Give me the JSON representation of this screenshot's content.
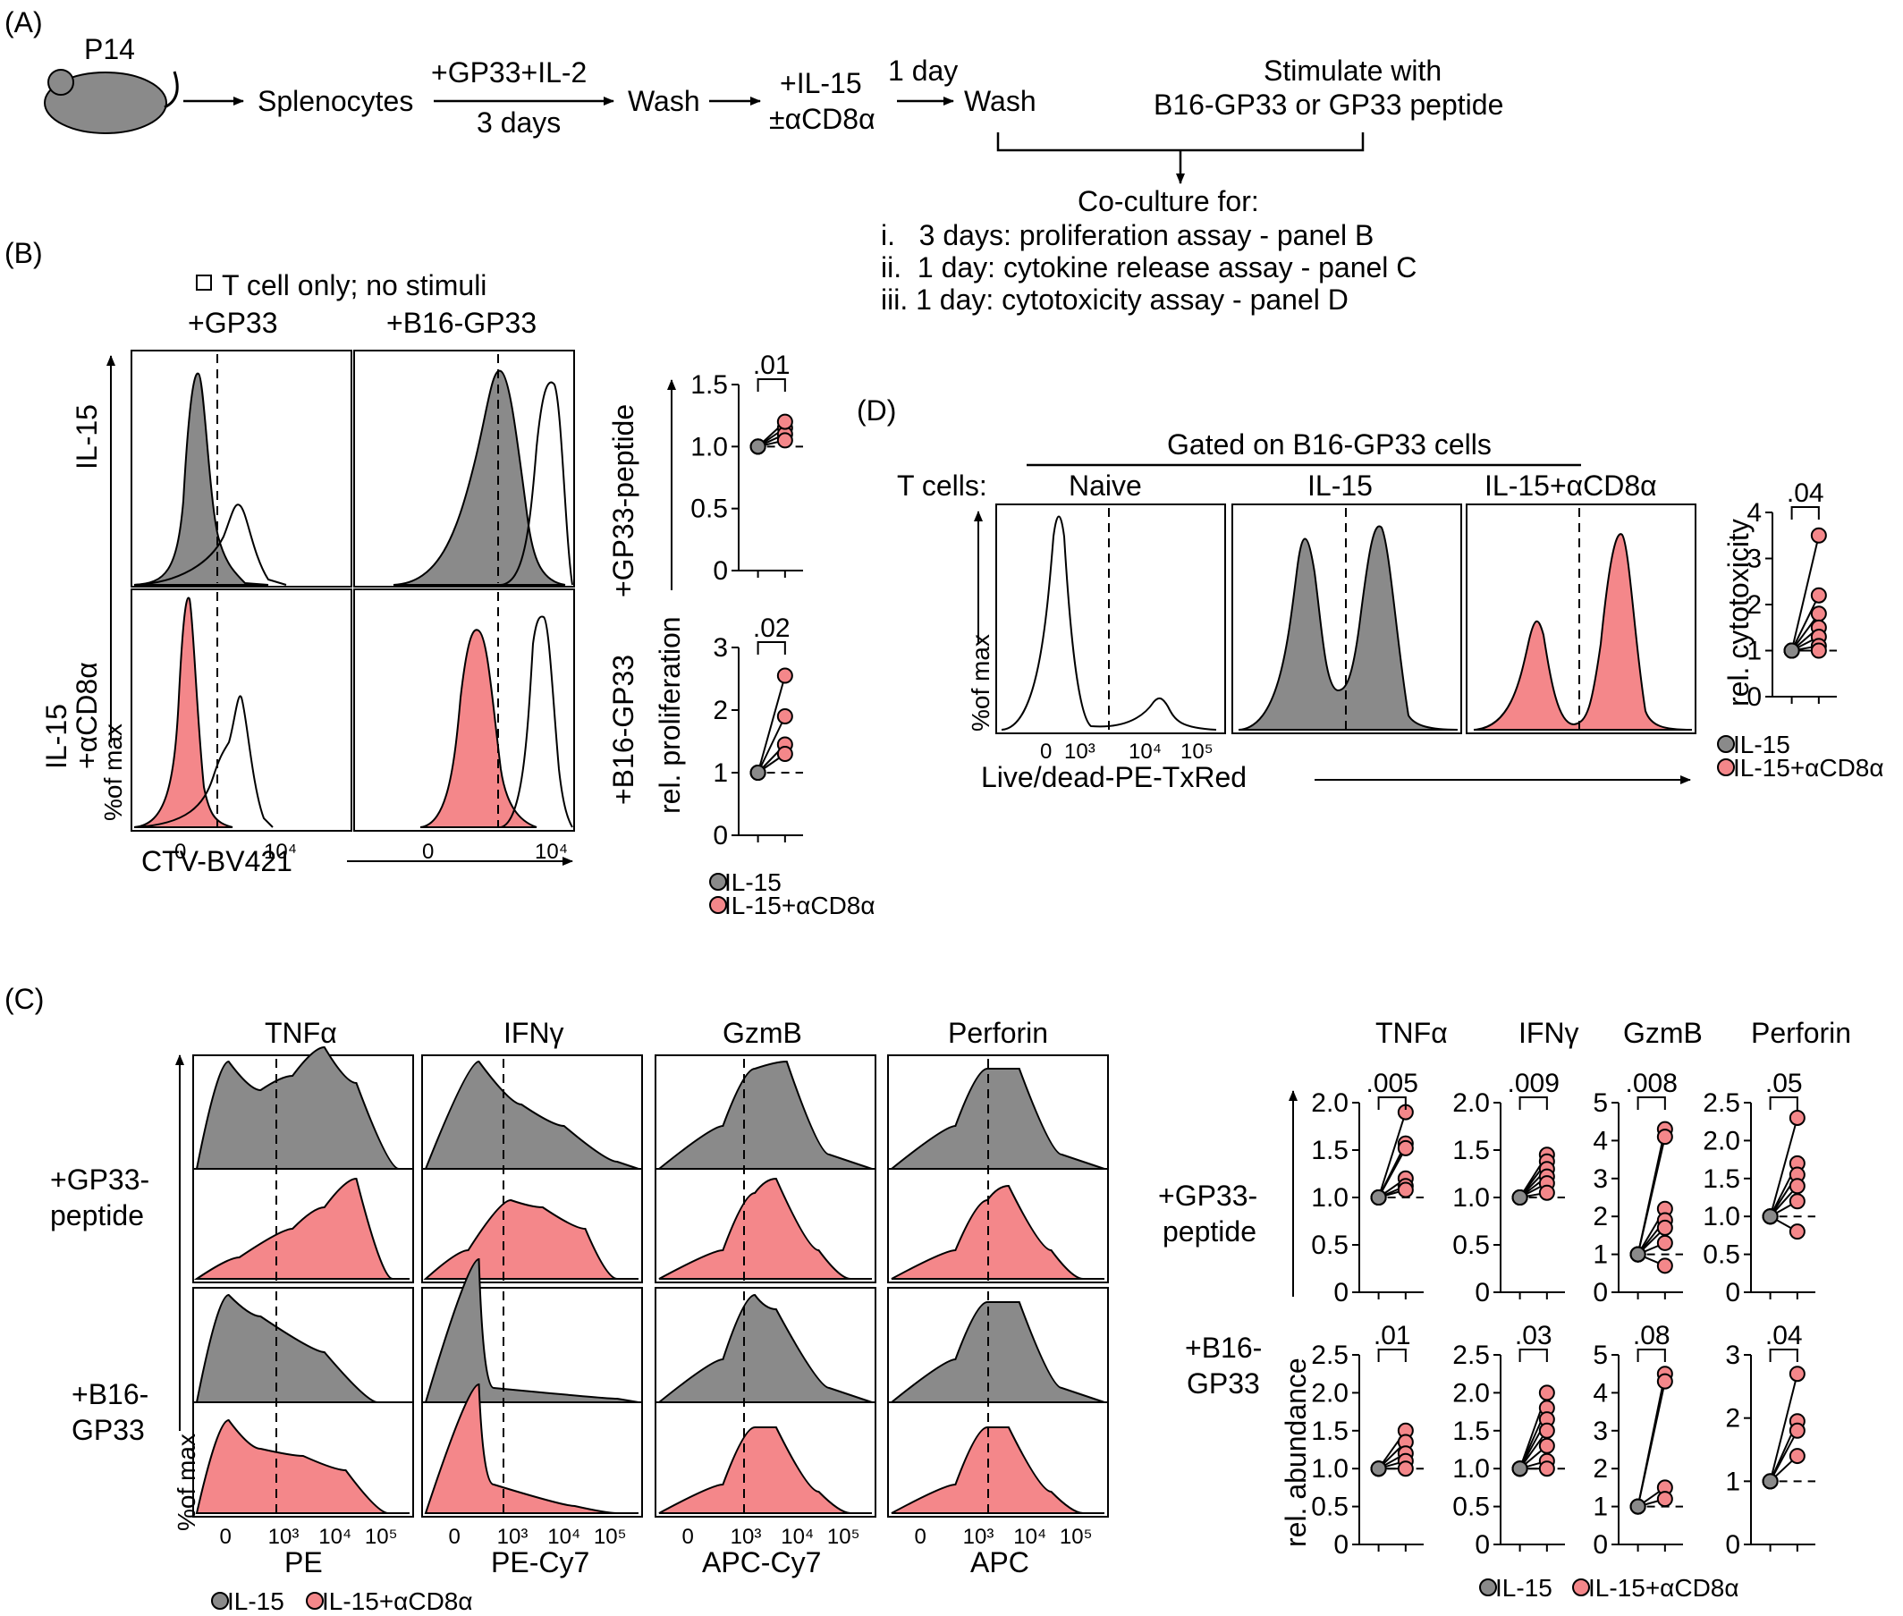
{
  "panel_a": {
    "letter": "(A)",
    "mouse_label": "P14",
    "step_splenocytes": "Splenocytes",
    "step_gp33_il2": "+GP33+IL-2",
    "step_3days": "3 days",
    "step_wash1": "Wash",
    "step_il15": "+IL-15",
    "step_acd8": "±αCD8α",
    "step_1day": "1 day",
    "step_wash2": "Wash",
    "stim_line1": "Stimulate with",
    "stim_line2": "B16-GP33 or GP33 peptide",
    "coculture_title": "Co-culture for:",
    "coculture_items": [
      "i.   3 days: proliferation assay - panel B",
      "ii.  1 day: cytokine release assay - panel C",
      "iii. 1 day: cytotoxicity assay - panel D"
    ]
  },
  "panel_b": {
    "letter": "(B)",
    "legend_open": "T cell only; no stimuli",
    "col_labels": [
      "+GP33",
      "+B16-GP33"
    ],
    "row_labels": [
      "IL-15",
      "IL-15",
      "+αCD8α"
    ],
    "y_axis": "%of max",
    "x_axis": "CTV-BV421",
    "ticks": [
      "0",
      "10⁴",
      "0",
      "10⁴"
    ],
    "dot_rows": [
      "+GP33-peptide",
      "+B16-GP33"
    ],
    "dot_y_axis": "rel. proliferation",
    "p_values": [
      ".01",
      ".02"
    ],
    "legend": [
      "IL-15",
      "IL-15+αCD8α"
    ]
  },
  "panel_c": {
    "letter": "(C)",
    "markers": [
      "TNFα",
      "IFNγ",
      "GzmB",
      "Perforin"
    ],
    "row_labels": [
      "+GP33-",
      "peptide",
      "+B16-",
      "GP33"
    ],
    "y_axis": "%of max",
    "channels": [
      "PE",
      "PE-Cy7",
      "APC-Cy7",
      "APC"
    ],
    "x_ticks": [
      "0",
      "10³",
      "10⁴",
      "10⁵"
    ],
    "legend": [
      "IL-15",
      "IL-15+αCD8α"
    ],
    "dot_markers": [
      "TNFα",
      "IFNγ",
      "GzmB",
      "Perforin"
    ],
    "dot_rows": [
      "+GP33-",
      "peptide",
      "+B16-",
      "GP33"
    ],
    "dot_y_axis": "rel. abundance",
    "p_top": [
      ".005",
      ".009",
      ".008",
      ".05"
    ],
    "p_bottom": [
      ".01",
      ".03",
      ".08",
      ".04"
    ],
    "dot_legend": [
      "IL-15",
      "IL-15+αCD8α"
    ]
  },
  "panel_d": {
    "letter": "(D)",
    "gate_label": "Gated on B16-GP33 cells",
    "t_cells_label": "T cells:",
    "col_labels": [
      "Naive",
      "IL-15",
      "IL-15+αCD8α"
    ],
    "y_axis": "%of max",
    "x_axis": "Live/dead-PE-TxRed",
    "x_ticks": [
      "0",
      "10³",
      "10⁴",
      "10⁵"
    ],
    "dot_y_axis": "rel. cytotoxicity",
    "p_value": ".04",
    "legend": [
      "IL-15",
      "IL-15+αCD8α"
    ]
  },
  "chart_data": [
    {
      "type": "scatter",
      "title": "",
      "xlabel": "",
      "ylabel": "rel. proliferation",
      "ylim": [
        0,
        1.5
      ],
      "x": [
        "IL-15",
        "IL-15+αCD8α"
      ],
      "series": [
        {
          "values": [
            1.0,
            1.15
          ]
        },
        {
          "values": [
            1.0,
            1.1
          ]
        },
        {
          "values": [
            1.0,
            1.05
          ]
        },
        {
          "values": [
            1.0,
            1.2
          ]
        }
      ],
      "annotations": [
        ".01"
      ]
    },
    {
      "type": "scatter",
      "title": "",
      "xlabel": "",
      "ylabel": "rel. proliferation",
      "ylim": [
        0,
        3
      ],
      "x": [
        "IL-15",
        "IL-15+αCD8α"
      ],
      "series": [
        {
          "values": [
            1.0,
            2.55
          ]
        },
        {
          "values": [
            1.0,
            1.9
          ]
        },
        {
          "values": [
            1.0,
            1.45
          ]
        },
        {
          "values": [
            1.0,
            1.3
          ]
        }
      ],
      "annotations": [
        ".02"
      ]
    },
    {
      "type": "scatter",
      "title": "",
      "xlabel": "",
      "ylabel": "rel. cytotoxicity",
      "ylim": [
        0,
        4
      ],
      "x": [
        "IL-15",
        "IL-15+αCD8α"
      ],
      "series": [
        {
          "values": [
            1.0,
            3.5
          ]
        },
        {
          "values": [
            1.0,
            2.2
          ]
        },
        {
          "values": [
            1.0,
            1.8
          ]
        },
        {
          "values": [
            1.0,
            1.5
          ]
        },
        {
          "values": [
            1.0,
            1.3
          ]
        },
        {
          "values": [
            1.0,
            1.1
          ]
        },
        {
          "values": [
            1.0,
            1.0
          ]
        }
      ],
      "annotations": [
        ".04"
      ]
    },
    {
      "type": "scatter",
      "title": "TNFα",
      "xlabel": "",
      "ylabel": "",
      "ylim": [
        0,
        2.0
      ],
      "yticks": [
        "0",
        "0.5",
        "1.0",
        "1.5",
        "2.0"
      ],
      "x": [
        "IL-15",
        "IL-15+αCD8α"
      ],
      "series": [
        {
          "values": [
            1.0,
            1.9
          ]
        },
        {
          "values": [
            1.0,
            1.57
          ]
        },
        {
          "values": [
            1.0,
            1.52
          ]
        },
        {
          "values": [
            1.0,
            1.2
          ]
        },
        {
          "values": [
            1.0,
            1.12
          ]
        },
        {
          "values": [
            1.0,
            1.08
          ]
        }
      ],
      "annotations": [
        ".005"
      ]
    },
    {
      "type": "scatter",
      "title": "IFNγ",
      "xlabel": "",
      "ylabel": "",
      "ylim": [
        0,
        2.0
      ],
      "yticks": [
        "0",
        "0.5",
        "1.0",
        "1.5",
        "2.0"
      ],
      "x": [
        "IL-15",
        "IL-15+αCD8α"
      ],
      "series": [
        {
          "values": [
            1.0,
            1.45
          ]
        },
        {
          "values": [
            1.0,
            1.38
          ]
        },
        {
          "values": [
            1.0,
            1.3
          ]
        },
        {
          "values": [
            1.0,
            1.22
          ]
        },
        {
          "values": [
            1.0,
            1.15
          ]
        },
        {
          "values": [
            1.0,
            1.05
          ]
        }
      ],
      "annotations": [
        ".009"
      ]
    },
    {
      "type": "scatter",
      "title": "GzmB",
      "xlabel": "",
      "ylabel": "",
      "ylim": [
        0,
        5
      ],
      "yticks": [
        "0",
        "1",
        "2",
        "3",
        "4",
        "5"
      ],
      "x": [
        "IL-15",
        "IL-15+αCD8α"
      ],
      "series": [
        {
          "values": [
            1.0,
            4.3
          ]
        },
        {
          "values": [
            1.0,
            4.1
          ]
        },
        {
          "values": [
            1.0,
            2.2
          ]
        },
        {
          "values": [
            1.0,
            1.9
          ]
        },
        {
          "values": [
            1.0,
            1.7
          ]
        },
        {
          "values": [
            1.0,
            1.3
          ]
        },
        {
          "values": [
            1.0,
            0.7
          ]
        }
      ],
      "annotations": [
        ".008"
      ]
    },
    {
      "type": "scatter",
      "title": "Perforin",
      "xlabel": "",
      "ylabel": "",
      "ylim": [
        0,
        2.5
      ],
      "yticks": [
        "0",
        "0.5",
        "1.0",
        "1.5",
        "2.0",
        "2.5"
      ],
      "x": [
        "IL-15",
        "IL-15+αCD8α"
      ],
      "series": [
        {
          "values": [
            1.0,
            2.3
          ]
        },
        {
          "values": [
            1.0,
            1.7
          ]
        },
        {
          "values": [
            1.0,
            1.55
          ]
        },
        {
          "values": [
            1.0,
            1.4
          ]
        },
        {
          "values": [
            1.0,
            1.2
          ]
        },
        {
          "values": [
            1.0,
            0.8
          ]
        }
      ],
      "annotations": [
        ".05"
      ]
    },
    {
      "type": "scatter",
      "title": "",
      "xlabel": "",
      "ylabel": "rel. abundance",
      "ylim": [
        0,
        2.5
      ],
      "yticks": [
        "0",
        "0.5",
        "1.0",
        "1.5",
        "2.0",
        "2.5"
      ],
      "x": [
        "IL-15",
        "IL-15+αCD8α"
      ],
      "series": [
        {
          "values": [
            1.0,
            1.5
          ]
        },
        {
          "values": [
            1.0,
            1.35
          ]
        },
        {
          "values": [
            1.0,
            1.2
          ]
        },
        {
          "values": [
            1.0,
            1.1
          ]
        },
        {
          "values": [
            1.0,
            1.0
          ]
        }
      ],
      "annotations": [
        ".01"
      ]
    },
    {
      "type": "scatter",
      "title": "",
      "xlabel": "",
      "ylabel": "",
      "ylim": [
        0,
        2.5
      ],
      "yticks": [
        "0",
        "0.5",
        "1.0",
        "1.5",
        "2.0",
        "2.5"
      ],
      "x": [
        "IL-15",
        "IL-15+αCD8α"
      ],
      "series": [
        {
          "values": [
            1.0,
            2.0
          ]
        },
        {
          "values": [
            1.0,
            1.8
          ]
        },
        {
          "values": [
            1.0,
            1.65
          ]
        },
        {
          "values": [
            1.0,
            1.5
          ]
        },
        {
          "values": [
            1.0,
            1.3
          ]
        },
        {
          "values": [
            1.0,
            1.1
          ]
        },
        {
          "values": [
            1.0,
            1.0
          ]
        }
      ],
      "annotations": [
        ".03"
      ]
    },
    {
      "type": "scatter",
      "title": "",
      "xlabel": "",
      "ylabel": "",
      "ylim": [
        0,
        5
      ],
      "yticks": [
        "0",
        "1",
        "2",
        "3",
        "4",
        "5"
      ],
      "x": [
        "IL-15",
        "IL-15+αCD8α"
      ],
      "series": [
        {
          "values": [
            1.0,
            4.5
          ]
        },
        {
          "values": [
            1.0,
            4.3
          ]
        },
        {
          "values": [
            1.0,
            1.5
          ]
        },
        {
          "values": [
            1.0,
            1.2
          ]
        }
      ],
      "annotations": [
        ".08"
      ]
    },
    {
      "type": "scatter",
      "title": "",
      "xlabel": "",
      "ylabel": "",
      "ylim": [
        0,
        3
      ],
      "yticks": [
        "0",
        "1",
        "2",
        "3"
      ],
      "x": [
        "IL-15",
        "IL-15+αCD8α"
      ],
      "series": [
        {
          "values": [
            1.0,
            2.7
          ]
        },
        {
          "values": [
            1.0,
            1.95
          ]
        },
        {
          "values": [
            1.0,
            1.8
          ]
        },
        {
          "values": [
            1.0,
            1.4
          ]
        }
      ],
      "annotations": [
        ".04"
      ]
    }
  ]
}
